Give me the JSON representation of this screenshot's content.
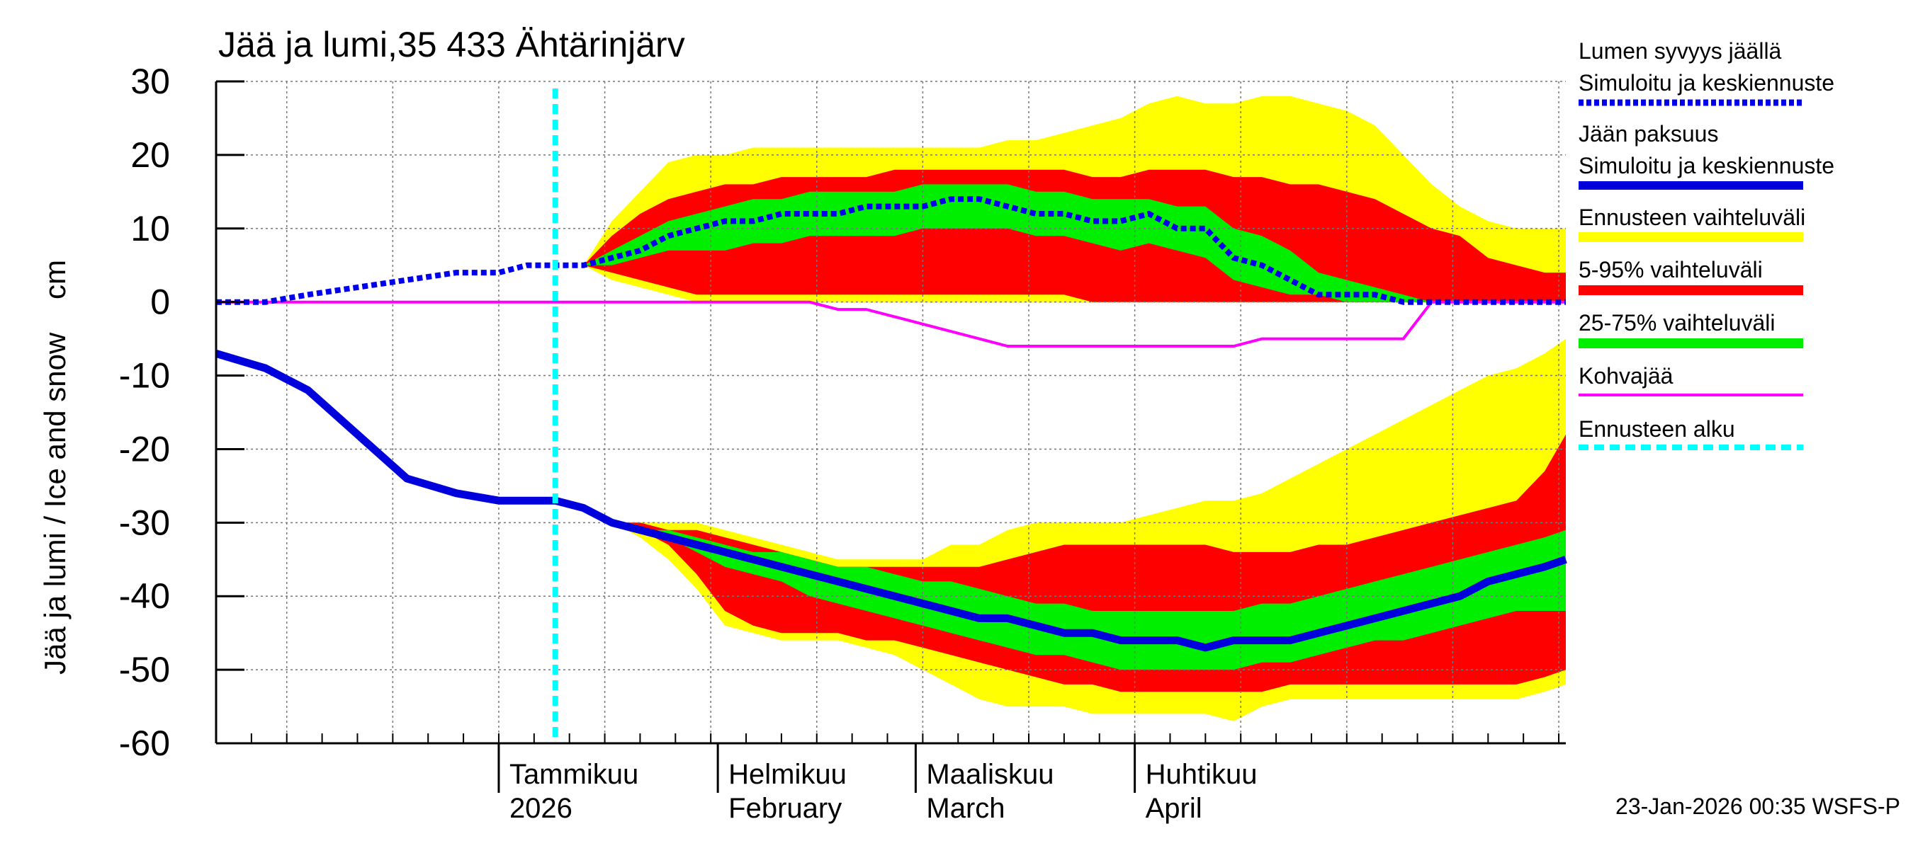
{
  "chart_data": {
    "type": "area",
    "title": "Jää ja lumi,35 433 Ähtärinjärv",
    "ylabel": "Jää ja lumi / Ice and snow    cm",
    "ylim": [
      -60,
      30
    ],
    "yticks": [
      30,
      20,
      10,
      0,
      -10,
      -20,
      -30,
      -40,
      -50,
      -60
    ],
    "xlim_days": [
      -40,
      151
    ],
    "grid": true,
    "forecast_start_day": 8,
    "month_labels": [
      {
        "day": 0,
        "fi": "Tammikuu",
        "en": "2026"
      },
      {
        "day": 31,
        "fi": "Helmikuu",
        "en": "February"
      },
      {
        "day": 59,
        "fi": "Maaliskuu",
        "en": "March"
      },
      {
        "day": 90,
        "fi": "Huhtikuu",
        "en": "April"
      }
    ],
    "timestamp": "23-Jan-2026 00:35 WSFS-P",
    "legend": [
      {
        "label": "Lumen syvyys jäällä",
        "label2": "Simuloitu ja keskiennuste",
        "color": "#0000ee",
        "style": "dotted"
      },
      {
        "label": "Jään paksuus",
        "label2": "Simuloitu ja keskiennuste",
        "color": "#0000dd",
        "style": "solid"
      },
      {
        "label": "Ennusteen vaihteluväli",
        "color": "#ffff00",
        "style": "band"
      },
      {
        "label": "5-95% vaihteluväli",
        "color": "#ff0000",
        "style": "band"
      },
      {
        "label": "25-75% vaihteluväli",
        "color": "#00ee00",
        "style": "band"
      },
      {
        "label": "Kohvajää",
        "color": "#ff00ff",
        "style": "thin"
      },
      {
        "label": "Ennusteen alku",
        "color": "#00ffff",
        "style": "dashed"
      }
    ],
    "x": [
      -40,
      -33,
      -27,
      -20,
      -13,
      -6,
      0,
      4,
      8,
      12,
      16,
      20,
      24,
      28,
      32,
      36,
      40,
      44,
      48,
      52,
      56,
      60,
      64,
      68,
      72,
      76,
      80,
      84,
      88,
      92,
      96,
      100,
      104,
      108,
      112,
      116,
      120,
      124,
      128,
      132,
      136,
      140,
      144,
      148,
      151
    ],
    "snow": {
      "mean": [
        0,
        0,
        1,
        2,
        3,
        4,
        4,
        5,
        5,
        5,
        6,
        7,
        9,
        10,
        11,
        11,
        12,
        12,
        12,
        13,
        13,
        13,
        14,
        14,
        13,
        12,
        12,
        11,
        11,
        12,
        10,
        10,
        6,
        5,
        3,
        1,
        1,
        1,
        0,
        0,
        0,
        0,
        0,
        0,
        0
      ],
      "p25": [
        0,
        0,
        1,
        2,
        3,
        4,
        4,
        5,
        5,
        5,
        5,
        6,
        7,
        7,
        7,
        8,
        8,
        9,
        9,
        9,
        9,
        10,
        10,
        10,
        10,
        9,
        9,
        8,
        7,
        8,
        7,
        6,
        3,
        2,
        1,
        1,
        0,
        0,
        0,
        0,
        0,
        0,
        0,
        0,
        0
      ],
      "p75": [
        0,
        0,
        1,
        2,
        3,
        4,
        4,
        5,
        5,
        5,
        7,
        9,
        11,
        12,
        13,
        14,
        14,
        15,
        15,
        15,
        15,
        16,
        16,
        16,
        16,
        15,
        15,
        14,
        14,
        14,
        13,
        13,
        10,
        9,
        7,
        4,
        3,
        2,
        1,
        0,
        0,
        0,
        0,
        0,
        0
      ],
      "p5": [
        0,
        0,
        1,
        2,
        3,
        4,
        4,
        5,
        5,
        5,
        4,
        3,
        2,
        1,
        1,
        1,
        1,
        1,
        1,
        1,
        1,
        1,
        1,
        1,
        1,
        1,
        1,
        0,
        0,
        0,
        0,
        0,
        0,
        0,
        0,
        0,
        0,
        0,
        0,
        0,
        0,
        0,
        0,
        0,
        0
      ],
      "p95": [
        0,
        0,
        1,
        2,
        3,
        4,
        4,
        5,
        5,
        5,
        9,
        12,
        14,
        15,
        16,
        16,
        17,
        17,
        17,
        17,
        18,
        18,
        18,
        18,
        18,
        18,
        18,
        17,
        17,
        18,
        18,
        18,
        17,
        17,
        16,
        16,
        15,
        14,
        12,
        10,
        9,
        6,
        5,
        4,
        4
      ],
      "min": [
        0,
        0,
        1,
        2,
        3,
        4,
        4,
        5,
        5,
        5,
        3,
        2,
        1,
        0,
        0,
        0,
        0,
        0,
        0,
        0,
        0,
        0,
        0,
        0,
        0,
        0,
        0,
        0,
        0,
        0,
        0,
        0,
        0,
        0,
        0,
        0,
        0,
        0,
        0,
        0,
        0,
        0,
        0,
        0,
        0
      ],
      "max": [
        0,
        0,
        1,
        2,
        3,
        4,
        4,
        5,
        5,
        5,
        11,
        15,
        19,
        20,
        20,
        21,
        21,
        21,
        21,
        21,
        21,
        21,
        21,
        21,
        22,
        22,
        23,
        24,
        25,
        27,
        28,
        27,
        27,
        28,
        28,
        27,
        26,
        24,
        20,
        16,
        13,
        11,
        10,
        10,
        10
      ]
    },
    "ice": {
      "mean": [
        -7,
        -9,
        -12,
        -18,
        -24,
        -26,
        -27,
        -27,
        -27,
        -28,
        -30,
        -31,
        -32,
        -33,
        -34,
        -35,
        -36,
        -37,
        -38,
        -39,
        -40,
        -41,
        -42,
        -43,
        -43,
        -44,
        -45,
        -45,
        -46,
        -46,
        -46,
        -47,
        -46,
        -46,
        -46,
        -45,
        -44,
        -43,
        -42,
        -41,
        -40,
        -38,
        -37,
        -36,
        -35
      ],
      "p25": [
        -7,
        -9,
        -12,
        -18,
        -24,
        -26,
        -27,
        -27,
        -27,
        -28,
        -30,
        -31,
        -32,
        -34,
        -36,
        -37,
        -38,
        -40,
        -41,
        -42,
        -43,
        -44,
        -45,
        -46,
        -47,
        -48,
        -48,
        -49,
        -50,
        -50,
        -50,
        -50,
        -50,
        -49,
        -49,
        -48,
        -47,
        -46,
        -46,
        -45,
        -44,
        -43,
        -42,
        -42,
        -42
      ],
      "p75": [
        -7,
        -9,
        -12,
        -18,
        -24,
        -26,
        -27,
        -27,
        -27,
        -28,
        -30,
        -31,
        -31,
        -32,
        -33,
        -34,
        -34,
        -35,
        -36,
        -36,
        -37,
        -38,
        -38,
        -39,
        -40,
        -41,
        -41,
        -42,
        -42,
        -42,
        -42,
        -42,
        -42,
        -41,
        -41,
        -40,
        -39,
        -38,
        -37,
        -36,
        -35,
        -34,
        -33,
        -32,
        -31
      ],
      "p5": [
        -7,
        -9,
        -12,
        -18,
        -24,
        -26,
        -27,
        -27,
        -27,
        -28,
        -30,
        -31,
        -33,
        -37,
        -42,
        -44,
        -45,
        -45,
        -45,
        -46,
        -46,
        -47,
        -48,
        -49,
        -50,
        -51,
        -52,
        -52,
        -53,
        -53,
        -53,
        -53,
        -53,
        -53,
        -52,
        -52,
        -52,
        -52,
        -52,
        -52,
        -52,
        -52,
        -52,
        -51,
        -50
      ],
      "p95": [
        -7,
        -9,
        -12,
        -18,
        -24,
        -26,
        -27,
        -27,
        -27,
        -28,
        -30,
        -30,
        -31,
        -31,
        -32,
        -33,
        -34,
        -35,
        -36,
        -36,
        -36,
        -36,
        -36,
        -36,
        -35,
        -34,
        -33,
        -33,
        -33,
        -33,
        -33,
        -33,
        -34,
        -34,
        -34,
        -33,
        -33,
        -32,
        -31,
        -30,
        -29,
        -28,
        -27,
        -23,
        -18
      ],
      "min": [
        -7,
        -9,
        -12,
        -18,
        -24,
        -26,
        -27,
        -27,
        -27,
        -28,
        -30,
        -32,
        -35,
        -39,
        -44,
        -45,
        -46,
        -46,
        -46,
        -47,
        -48,
        -50,
        -52,
        -54,
        -55,
        -55,
        -55,
        -56,
        -56,
        -56,
        -56,
        -56,
        -57,
        -55,
        -54,
        -54,
        -54,
        -54,
        -54,
        -54,
        -54,
        -54,
        -54,
        -53,
        -52
      ],
      "max": [
        -7,
        -9,
        -12,
        -18,
        -24,
        -26,
        -27,
        -27,
        -27,
        -28,
        -30,
        -30,
        -30,
        -30,
        -31,
        -32,
        -33,
        -34,
        -35,
        -35,
        -35,
        -35,
        -33,
        -33,
        -31,
        -30,
        -30,
        -30,
        -30,
        -29,
        -28,
        -27,
        -27,
        -26,
        -24,
        -22,
        -20,
        -18,
        -16,
        -14,
        -12,
        -10,
        -9,
        -7,
        -5
      ]
    },
    "kohva": {
      "x": [
        -40,
        28,
        36,
        44,
        48,
        52,
        56,
        60,
        64,
        68,
        72,
        76,
        80,
        84,
        88,
        92,
        96,
        100,
        104,
        108,
        112,
        116,
        120,
        124,
        128,
        132,
        136,
        140,
        144,
        148,
        151
      ],
      "values": [
        0,
        0,
        0,
        0,
        -1,
        -1,
        -2,
        -3,
        -4,
        -5,
        -6,
        -6,
        -6,
        -6,
        -6,
        -6,
        -6,
        -6,
        -6,
        -5,
        -5,
        -5,
        -5,
        -5,
        -5,
        0,
        0,
        0,
        0,
        0,
        0
      ]
    }
  }
}
